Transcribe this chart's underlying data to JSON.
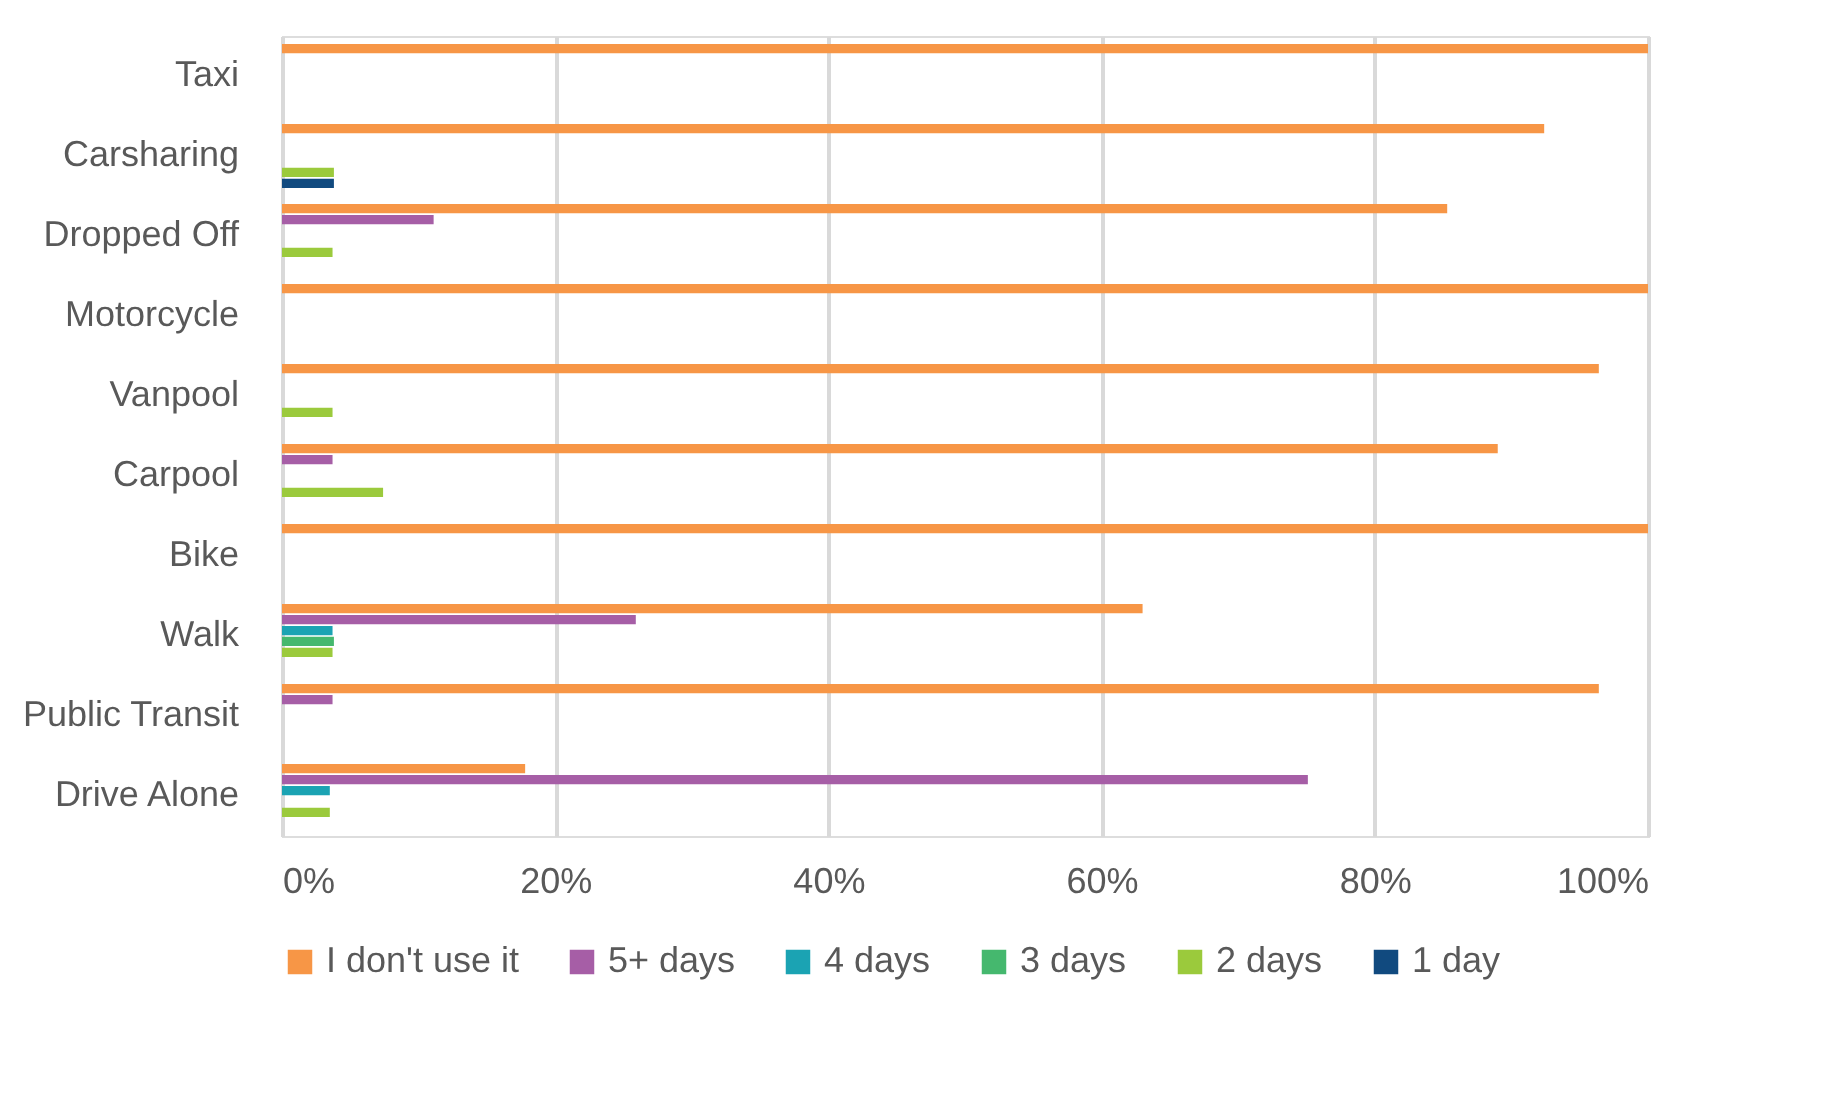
{
  "chart_data": {
    "type": "bar",
    "orientation": "horizontal",
    "categories": [
      "Taxi",
      "Carsharing",
      "Dropped Off",
      "Motorcycle",
      "Vanpool",
      "Carpool",
      "Bike",
      "Walk",
      "Public Transit",
      "Drive Alone"
    ],
    "series": [
      {
        "name": "I don't use it",
        "color": "#f79646",
        "values": [
          100,
          92.4,
          85.3,
          100,
          96.4,
          89.0,
          100,
          63.0,
          96.4,
          17.8
        ]
      },
      {
        "name": "5+ days",
        "color": "#a65ea6",
        "values": [
          null,
          null,
          11.1,
          null,
          null,
          3.7,
          null,
          25.9,
          3.7,
          75.1
        ]
      },
      {
        "name": "4 days",
        "color": "#1ba3b3",
        "values": [
          null,
          null,
          null,
          null,
          null,
          null,
          null,
          3.7,
          null,
          3.5
        ]
      },
      {
        "name": "3 days",
        "color": "#45b86e",
        "values": [
          null,
          null,
          null,
          null,
          null,
          null,
          null,
          3.8,
          null,
          null
        ]
      },
      {
        "name": "2 days",
        "color": "#9bca3c",
        "values": [
          null,
          3.8,
          3.7,
          null,
          3.7,
          7.4,
          null,
          3.7,
          null,
          3.5
        ]
      },
      {
        "name": "1 day",
        "color": "#114a7f",
        "values": [
          null,
          3.8,
          null,
          null,
          null,
          null,
          null,
          null,
          null,
          null
        ]
      }
    ],
    "xlim": [
      0,
      100
    ],
    "xticks": [
      {
        "value": 0,
        "label": "0%"
      },
      {
        "value": 20,
        "label": "20%"
      },
      {
        "value": 40,
        "label": "40%"
      },
      {
        "value": 60,
        "label": "60%"
      },
      {
        "value": 80,
        "label": "80%"
      },
      {
        "value": 100,
        "label": "100%"
      }
    ],
    "grid": "x",
    "legend": "bottom"
  }
}
